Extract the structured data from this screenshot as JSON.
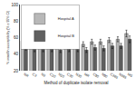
{
  "chart_data": {
    "type": "bar",
    "xlabel": "Method of duplicate isolate removal",
    "ylabel": "% oxacillin susceptibility (% ± 95% CI)",
    "categories": [
      "NR",
      "C3",
      "N3",
      "C10",
      "N10",
      "C30",
      "N30",
      "MR",
      "C90",
      "N90",
      "C365",
      "N365",
      "MS"
    ],
    "series": [
      {
        "name": "Hospital A",
        "color": "#b8b8b8",
        "values": [
          56,
          53,
          53,
          52,
          52,
          53,
          53,
          52,
          55,
          55,
          57,
          58,
          65
        ],
        "error": [
          3,
          3,
          3,
          3,
          3,
          3,
          3,
          3,
          3,
          3,
          3,
          3,
          4
        ]
      },
      {
        "name": "Hospital B",
        "color": "#606060",
        "values": [
          48,
          46,
          46,
          46,
          45,
          46,
          46,
          45,
          48,
          47,
          50,
          50,
          58
        ],
        "error": [
          3,
          3,
          3,
          3,
          3,
          3,
          3,
          3,
          3,
          3,
          3,
          3,
          4
        ]
      }
    ],
    "ylim": [
      20,
      100
    ],
    "yticks": [
      20,
      40,
      60,
      80,
      100
    ],
    "grid": false,
    "legend": "upper left"
  }
}
